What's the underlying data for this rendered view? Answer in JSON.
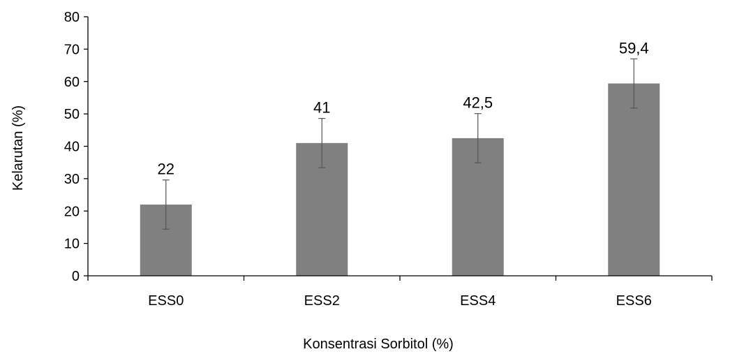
{
  "chart_data": {
    "type": "bar",
    "title": "",
    "xlabel": "Konsentrasi Sorbitol (%)",
    "ylabel": "Kelarutan (%)",
    "categories": [
      "ESS0",
      "ESS2",
      "ESS4",
      "ESS6"
    ],
    "values": [
      22,
      41,
      42.5,
      59.4
    ],
    "data_labels": [
      "22",
      "41",
      "42,5",
      "59,4"
    ],
    "error_bars": [
      7.6,
      7.6,
      7.6,
      7.6
    ],
    "ylim": [
      0,
      80
    ],
    "yticks": [
      0,
      10,
      20,
      30,
      40,
      50,
      60,
      70,
      80
    ],
    "grid": false,
    "legend": "none",
    "bar_color": "#808080",
    "error_bar_color": "#555555",
    "axis_color": "#000000"
  }
}
